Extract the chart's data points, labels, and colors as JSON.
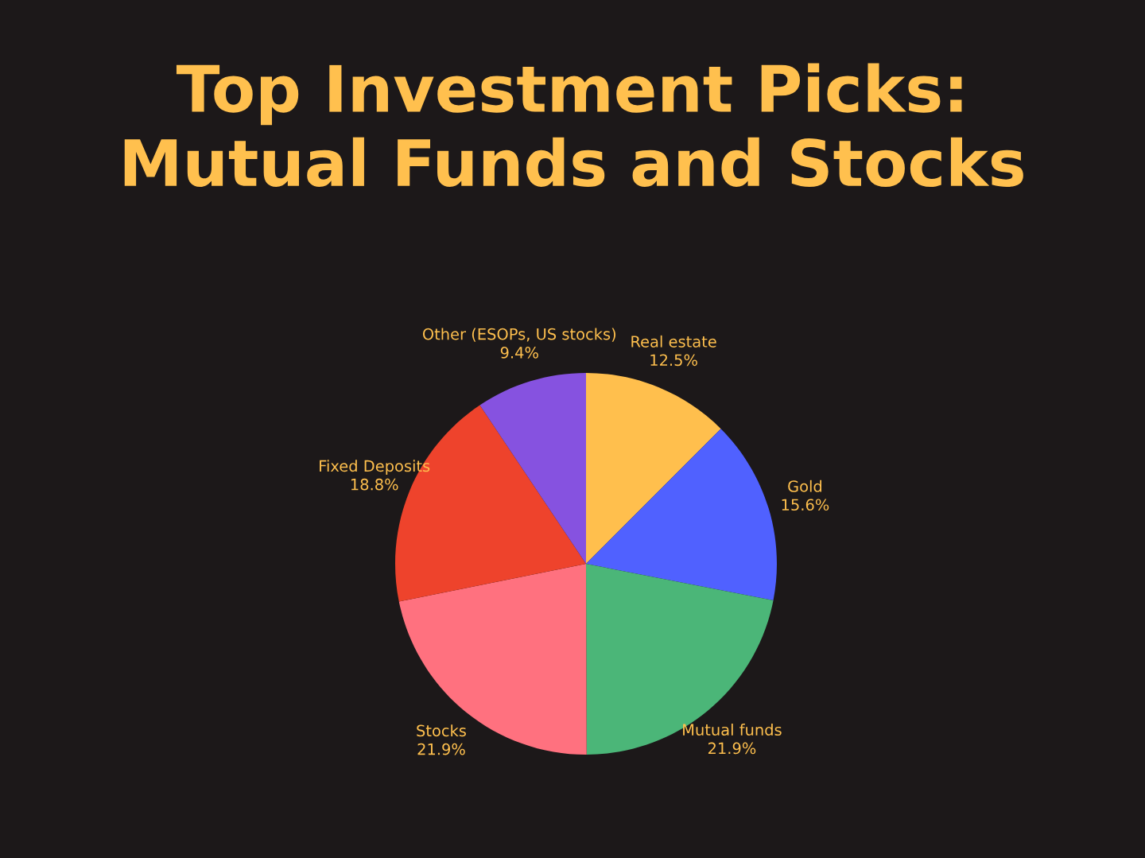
{
  "chart_data": {
    "type": "pie",
    "title": "Top Investment Picks:\nMutual Funds and Stocks",
    "categories": [
      "Real estate",
      "Gold",
      "Mutual funds",
      "Stocks",
      "Fixed Deposits",
      "Other (ESOPs, US stocks)"
    ],
    "values": [
      12.5,
      15.6,
      21.9,
      21.9,
      18.8,
      9.4
    ],
    "value_labels": [
      "12.5%",
      "15.6%",
      "21.9%",
      "21.9%",
      "18.8%",
      "9.4%"
    ],
    "colors": [
      "#ffbf4d",
      "#5061ff",
      "#4bb678",
      "#ff717f",
      "#ee432c",
      "#8652e0"
    ],
    "legend": false
  }
}
